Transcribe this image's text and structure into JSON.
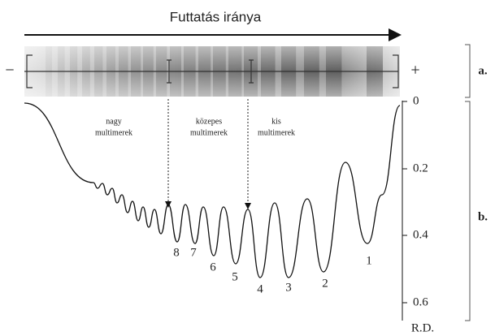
{
  "header": {
    "title": "Futtatás iránya"
  },
  "gel": {
    "minus": "−",
    "plus": "+"
  },
  "panels": {
    "a": "a.",
    "b": "b."
  },
  "regions": [
    {
      "line1": "nagy",
      "line2": "multimerek"
    },
    {
      "line1": "közepes",
      "line2": "multimerek"
    },
    {
      "line1": "kis",
      "line2": "multimerek"
    }
  ],
  "axis": {
    "label": "R.D.",
    "ticks": [
      "0",
      "0.2",
      "0.4",
      "0.6"
    ]
  },
  "peaks": [
    "8",
    "7",
    "6",
    "5",
    "4",
    "3",
    "2",
    "1"
  ]
}
